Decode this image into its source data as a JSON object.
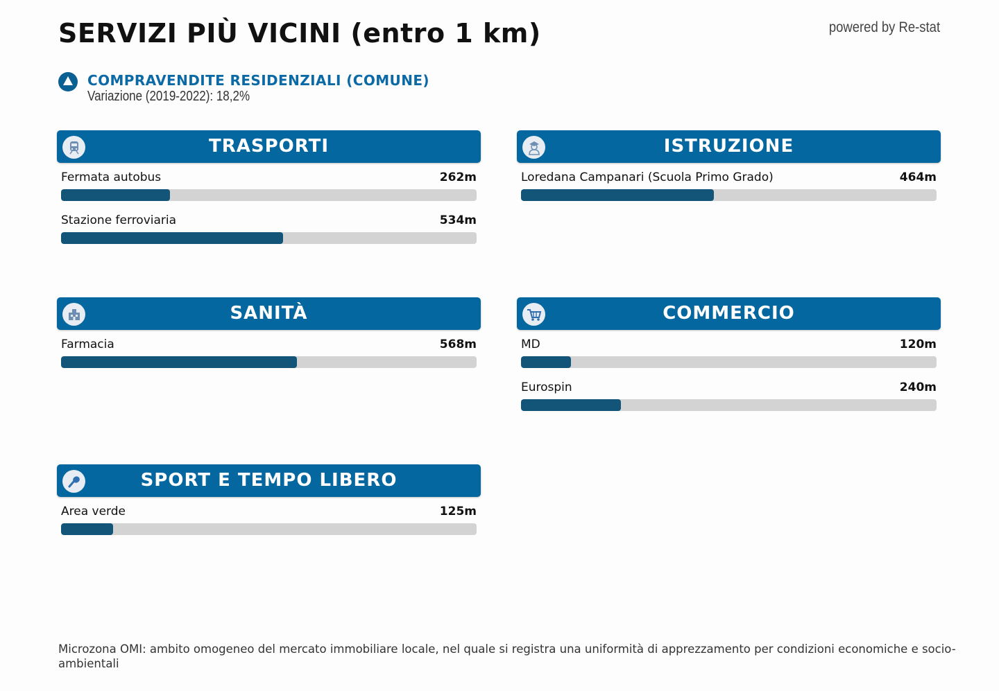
{
  "header": {
    "title": "SERVIZI PIÙ VICINI (entro 1 km)",
    "powered_by": "powered by Re-stat"
  },
  "compravendite": {
    "icon": "triangle-up-icon",
    "title": "COMPRAVENDITE RESIDENZIALI (COMUNE)",
    "subtitle": "Variazione (2019-2022): 18,2%"
  },
  "scale_max_m": 1000,
  "colors": {
    "header_bg": "#05679f",
    "bar_fill": "#125578",
    "bar_track": "#d3d3d3",
    "accent_text": "#0b6aa6"
  },
  "panels": [
    {
      "title": "TRASPORTI",
      "icon": "train-icon",
      "items": [
        {
          "label": "Fermata autobus",
          "value": "262m",
          "meters": 262
        },
        {
          "label": "Stazione ferroviaria",
          "value": "534m",
          "meters": 534
        }
      ]
    },
    {
      "title": "ISTRUZIONE",
      "icon": "student-icon",
      "items": [
        {
          "label": "Loredana Campanari (Scuola Primo Grado)",
          "value": "464m",
          "meters": 464
        }
      ]
    },
    {
      "title": "SANITÀ",
      "icon": "hospital-icon",
      "items": [
        {
          "label": "Farmacia",
          "value": "568m",
          "meters": 568
        }
      ]
    },
    {
      "title": "COMMERCIO",
      "icon": "shopping-cart-icon",
      "items": [
        {
          "label": "MD",
          "value": "120m",
          "meters": 120
        },
        {
          "label": "Eurospin",
          "value": "240m",
          "meters": 240
        }
      ]
    },
    {
      "title": "SPORT E TEMPO LIBERO",
      "icon": "tennis-racket-icon",
      "items": [
        {
          "label": "Area verde",
          "value": "125m",
          "meters": 125
        }
      ]
    }
  ],
  "footer": {
    "note": "Microzona OMI: ambito omogeneo del mercato immobiliare locale, nel quale si registra una uniformità di apprezzamento per condizioni economiche e socio-ambientali"
  }
}
